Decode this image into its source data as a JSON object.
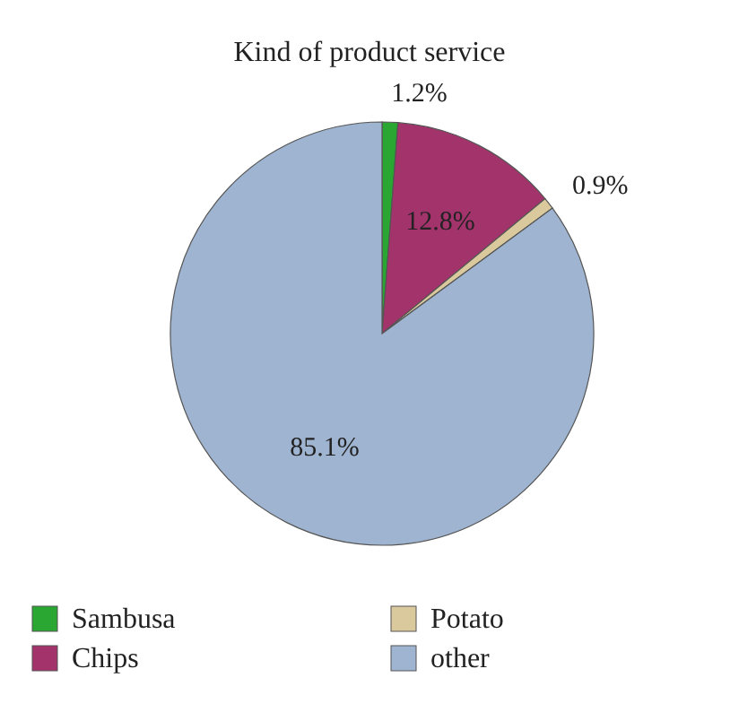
{
  "chart_data": {
    "type": "pie",
    "title": "Kind of product service",
    "categories": [
      "Sambusa",
      "Chips",
      "Potato",
      "other"
    ],
    "values": [
      1.2,
      12.8,
      0.9,
      85.1
    ],
    "value_labels": [
      "1.2%",
      "12.8%",
      "0.9%",
      "85.1%"
    ],
    "colors": [
      "#2aa632",
      "#a3336b",
      "#d9c99c",
      "#9fb4d0"
    ],
    "legend": "bottom"
  }
}
